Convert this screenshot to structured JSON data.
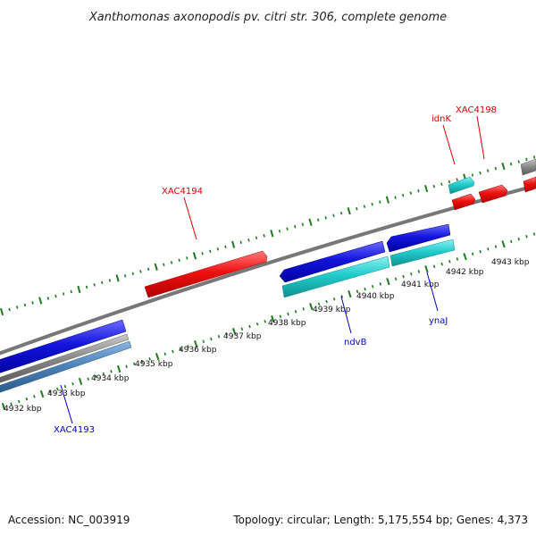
{
  "title": "Xanthomonas axonopodis pv. citri str. 306, complete genome",
  "footer": {
    "accession": "Accession: NC_003919",
    "summary": "Topology: circular; Length: 5,175,554 bp; Genes: 4,373"
  },
  "colors": {
    "forward_cds": "#ee1111",
    "reverse_cds": "#1111dd",
    "forward_rna": "#22cccc",
    "reverse_rna": "#22bbcc",
    "backbone": "#777777",
    "tick": "#1f7a1f",
    "label_forward": "#dd0000",
    "label_reverse": "#0000cc"
  },
  "ruler": {
    "tick_labels": [
      "4932 kbp",
      "4933 kbp",
      "4934 kbp",
      "4935 kbp",
      "4936 kbp",
      "4937 kbp",
      "4938 kbp",
      "4939 kbp",
      "4940 kbp",
      "4941 kbp",
      "4942 kbp",
      "4943 kbp"
    ]
  },
  "gene_labels": [
    {
      "text": "XAC4194",
      "strand": "forward"
    },
    {
      "text": "idnK",
      "strand": "forward"
    },
    {
      "text": "XAC4198",
      "strand": "forward"
    },
    {
      "text": "ndvB",
      "strand": "reverse"
    },
    {
      "text": "ynaJ",
      "strand": "reverse"
    },
    {
      "text": "XAC4193",
      "strand": "reverse"
    }
  ]
}
